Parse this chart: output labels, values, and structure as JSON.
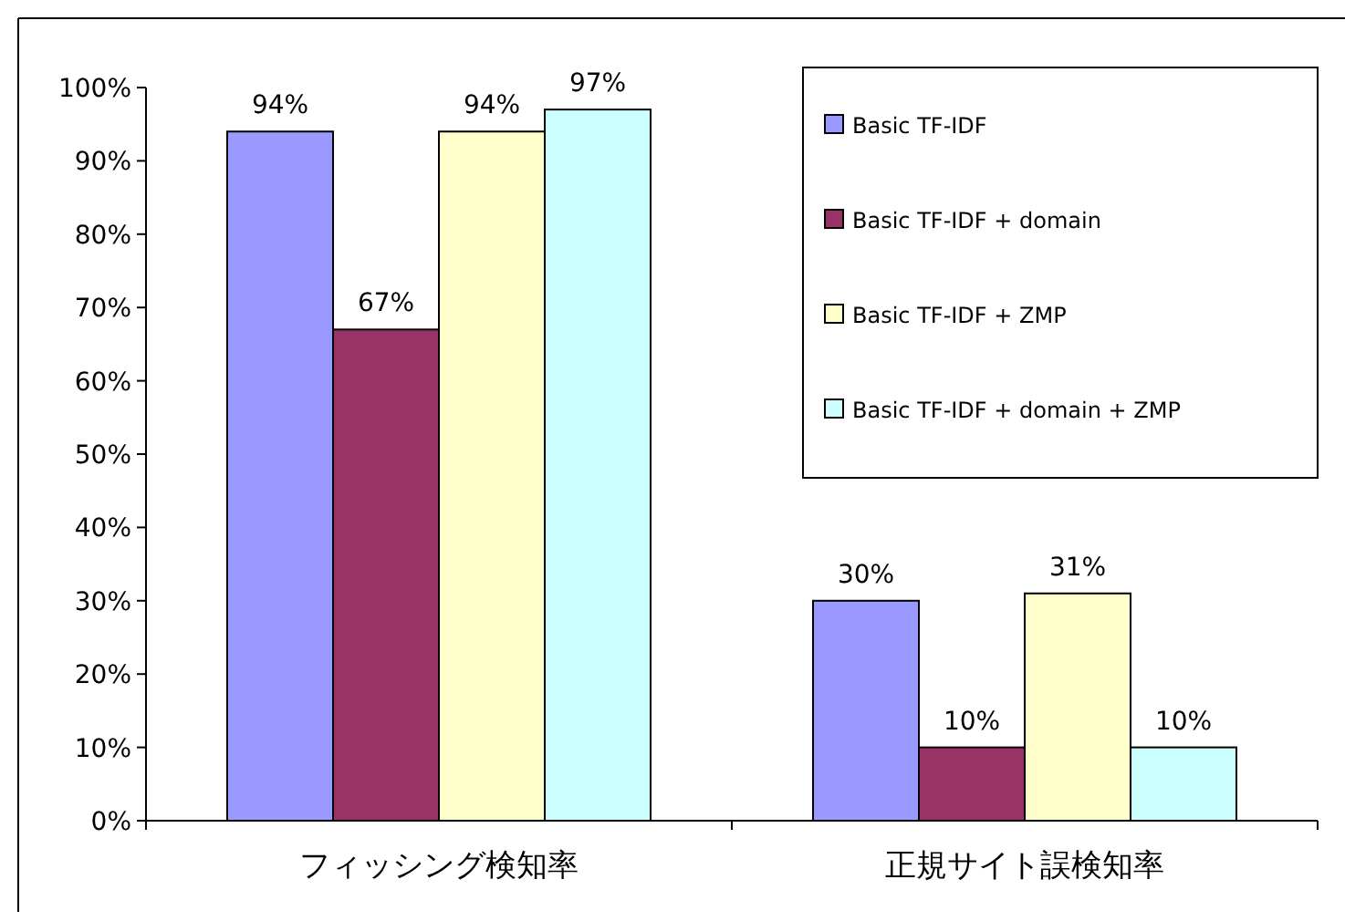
{
  "chart_data": {
    "type": "bar",
    "categories": [
      "フィッシング検知率",
      "正規サイト誤検知率"
    ],
    "series": [
      {
        "name": "Basic TF-IDF",
        "color": "#9999ff",
        "values": [
          94,
          30
        ],
        "value_labels": [
          "94%",
          "30%"
        ]
      },
      {
        "name": "Basic TF-IDF + domain",
        "color": "#993366",
        "values": [
          67,
          10
        ],
        "value_labels": [
          "67%",
          "10%"
        ]
      },
      {
        "name": "Basic TF-IDF + ZMP",
        "color": "#ffffcc",
        "values": [
          94,
          31
        ],
        "value_labels": [
          "94%",
          "31%"
        ]
      },
      {
        "name": "Basic TF-IDF + domain + ZMP",
        "color": "#ccffff",
        "values": [
          97,
          10
        ],
        "value_labels": [
          "97%",
          "10%"
        ]
      }
    ],
    "ylim": [
      0,
      100
    ],
    "yticks": [
      {
        "value": 0,
        "label": "0%"
      },
      {
        "value": 10,
        "label": "10%"
      },
      {
        "value": 20,
        "label": "20%"
      },
      {
        "value": 30,
        "label": "30%"
      },
      {
        "value": 40,
        "label": "40%"
      },
      {
        "value": 50,
        "label": "50%"
      },
      {
        "value": 60,
        "label": "60%"
      },
      {
        "value": 70,
        "label": "70%"
      },
      {
        "value": 80,
        "label": "80%"
      },
      {
        "value": 90,
        "label": "90%"
      },
      {
        "value": 100,
        "label": "100%"
      }
    ],
    "grid": false,
    "legend": "top right"
  }
}
